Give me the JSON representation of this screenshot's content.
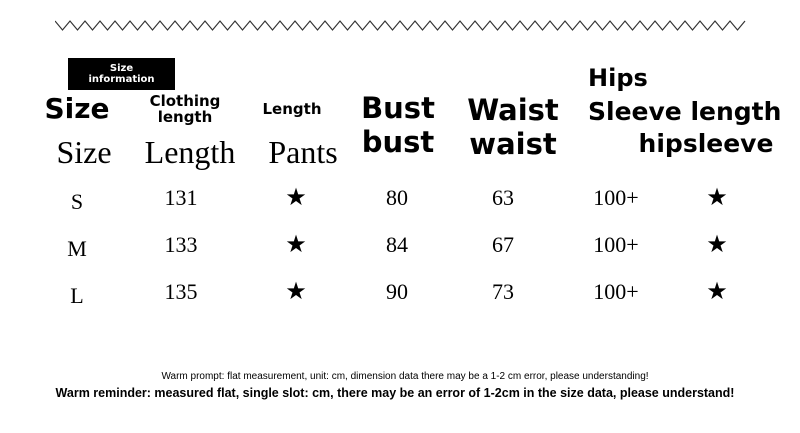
{
  "badge": "Size information",
  "headers_en": {
    "size": "Size",
    "clothing_length": "Clothing length",
    "length": "Length",
    "bust": "Bust",
    "waist": "Waist",
    "hips": "Hips",
    "sleeve": "Sleeve length"
  },
  "headers_sub": {
    "size": "Size",
    "length": "Length",
    "pants": "Pants",
    "bust": "bust",
    "waist": "waist",
    "hipsleeve": "hipsleeve"
  },
  "rows": [
    {
      "size": "S",
      "clothing_length": "131",
      "length": "★",
      "bust": "80",
      "waist": "63",
      "hips": "100+",
      "sleeve": "★"
    },
    {
      "size": "M",
      "clothing_length": "133",
      "length": "★",
      "bust": "84",
      "waist": "67",
      "hips": "100+",
      "sleeve": "★"
    },
    {
      "size": "L",
      "clothing_length": "135",
      "length": "★",
      "bust": "90",
      "waist": "73",
      "hips": "100+",
      "sleeve": "★"
    }
  ],
  "note_small": "Warm prompt: flat measurement, unit: cm, dimension data there may be a 1-2 cm error, please understanding!",
  "note_bold": "Warm reminder: measured flat, single slot: cm, there may be an error of 1-2cm in the size data, please understand!"
}
